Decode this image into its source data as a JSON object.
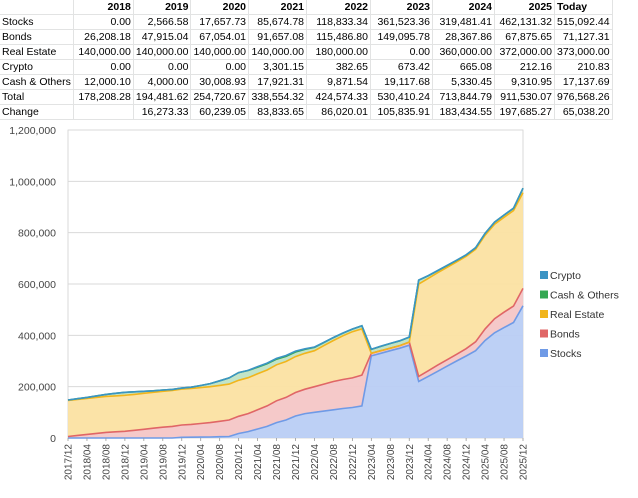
{
  "table": {
    "columns": [
      "",
      "2018",
      "2019",
      "2020",
      "2021",
      "2022",
      "2023",
      "2024",
      "2025",
      "Today"
    ],
    "rows": [
      {
        "label": "Stocks",
        "cells": [
          "0.00",
          "2,566.58",
          "17,657.73",
          "85,674.78",
          "118,833.34",
          "361,523.36",
          "319,481.41",
          "462,131.32",
          "515,092.44"
        ]
      },
      {
        "label": "Bonds",
        "cells": [
          "26,208.18",
          "47,915.04",
          "67,054.01",
          "91,657.08",
          "115,486.80",
          "149,095.78",
          "28,367.86",
          "67,875.65",
          "71,127.31"
        ]
      },
      {
        "label": "Real Estate",
        "cells": [
          "140,000.00",
          "140,000.00",
          "140,000.00",
          "140,000.00",
          "180,000.00",
          "0.00",
          "360,000.00",
          "372,000.00",
          "373,000.00"
        ]
      },
      {
        "label": "Crypto",
        "cells": [
          "0.00",
          "0.00",
          "0.00",
          "3,301.15",
          "382.65",
          "673.42",
          "665.08",
          "212.16",
          "210.83"
        ]
      },
      {
        "label": "Cash & Others",
        "cells": [
          "12,000.10",
          "4,000.00",
          "30,008.93",
          "17,921.31",
          "9,871.54",
          "19,117.68",
          "5,330.45",
          "9,310.95",
          "17,137.69"
        ]
      },
      {
        "label": "Total",
        "cells": [
          "178,208.28",
          "194,481.62",
          "254,720.67",
          "338,554.32",
          "424,574.33",
          "530,410.24",
          "713,844.79",
          "911,530.07",
          "976,568.26"
        ]
      },
      {
        "label": "Change",
        "cells": [
          "",
          "16,273.33",
          "60,239.05",
          "83,833.65",
          "86,020.01",
          "105,835.91",
          "183,434.55",
          "197,685.27",
          "65,038.20"
        ]
      }
    ]
  },
  "chart_data": {
    "type": "area",
    "stacked": true,
    "ylim": [
      0,
      1200000
    ],
    "yticks": [
      "0",
      "200,000",
      "400,000",
      "600,000",
      "800,000",
      "1,000,000",
      "1,200,000"
    ],
    "ytick_values": [
      0,
      200000,
      400000,
      600000,
      800000,
      1000000,
      1200000
    ],
    "grid": true,
    "legend_position": "right",
    "x": [
      "2017/12",
      "2018/02",
      "2018/04",
      "2018/06",
      "2018/08",
      "2018/10",
      "2018/12",
      "2019/02",
      "2019/04",
      "2019/06",
      "2019/08",
      "2019/10",
      "2019/12",
      "2020/02",
      "2020/04",
      "2020/06",
      "2020/08",
      "2020/10",
      "2020/12",
      "2021/02",
      "2021/04",
      "2021/06",
      "2021/08",
      "2021/10",
      "2021/12",
      "2022/02",
      "2022/04",
      "2022/06",
      "2022/08",
      "2022/10",
      "2022/12",
      "2023/02",
      "2023/04",
      "2023/06",
      "2023/08",
      "2023/10",
      "2023/12",
      "2024/02",
      "2024/04",
      "2024/06",
      "2024/08",
      "2024/10",
      "2024/12",
      "2025/02",
      "2025/04",
      "2025/06",
      "2025/08",
      "2025/10",
      "2025/12"
    ],
    "xtick_labels": [
      "2017/12",
      "2018/04",
      "2018/08",
      "2018/12",
      "2019/04",
      "2019/08",
      "2019/12",
      "2020/04",
      "2020/08",
      "2020/12",
      "2021/04",
      "2021/08",
      "2021/12",
      "2022/04",
      "2022/08",
      "2022/12",
      "2023/04",
      "2023/08",
      "2023/12",
      "2024/04",
      "2024/08",
      "2024/12",
      "2025/04",
      "2025/08",
      "2025/12"
    ],
    "series": [
      {
        "name": "Stocks",
        "color": "#b9cdf4",
        "stroke": "#6f9ae6",
        "values": [
          0,
          0,
          0,
          0,
          0,
          0,
          0,
          0,
          0,
          0,
          0,
          0,
          2567,
          3000,
          3500,
          4000,
          5000,
          6000,
          17658,
          25000,
          35000,
          45000,
          60000,
          70000,
          85675,
          95000,
          100000,
          105000,
          110000,
          115000,
          118833,
          125000,
          320000,
          330000,
          340000,
          350000,
          361523,
          220000,
          240000,
          260000,
          280000,
          300000,
          319481,
          340000,
          380000,
          410000,
          430000,
          450000,
          515092
        ]
      },
      {
        "name": "Bonds",
        "color": "#f4c6c6",
        "stroke": "#e06666",
        "values": [
          6000,
          10000,
          14000,
          18000,
          22000,
          24000,
          26208,
          30000,
          34000,
          38000,
          42000,
          45000,
          47915,
          50000,
          53000,
          56000,
          60000,
          64000,
          67054,
          70000,
          75000,
          80000,
          85000,
          88000,
          91657,
          95000,
          100000,
          105000,
          110000,
          113000,
          115487,
          120000,
          10000,
          10000,
          10000,
          10000,
          12000,
          20000,
          22000,
          24000,
          25000,
          26000,
          28368,
          35000,
          45000,
          55000,
          60000,
          64000,
          67876
        ]
      },
      {
        "name": "Real Estate",
        "color": "#fbe2a2",
        "stroke": "#f1b51c",
        "values": [
          140000,
          140000,
          140000,
          140000,
          140000,
          140000,
          140000,
          140000,
          140000,
          140000,
          140000,
          140000,
          140000,
          140000,
          140000,
          140000,
          140000,
          140000,
          140000,
          140000,
          140000,
          140000,
          140000,
          140000,
          140000,
          140000,
          140000,
          150000,
          160000,
          170000,
          180000,
          180000,
          0,
          0,
          0,
          0,
          0,
          360000,
          360000,
          360000,
          360000,
          360000,
          360000,
          360000,
          365000,
          368000,
          370000,
          372000,
          373000
        ]
      },
      {
        "name": "Cash & Others",
        "color": "#bfe3c5",
        "stroke": "#34a853",
        "values": [
          2000,
          3000,
          4000,
          6000,
          8000,
          10000,
          12000,
          10000,
          8000,
          6000,
          5000,
          4500,
          4000,
          5000,
          8000,
          12000,
          18000,
          24000,
          30009,
          28000,
          26000,
          24000,
          22000,
          20000,
          17921,
          15000,
          13000,
          12000,
          11000,
          10500,
          9872,
          12000,
          15000,
          17000,
          18000,
          18500,
          19118,
          15000,
          10000,
          8000,
          7000,
          6000,
          5330,
          6000,
          7000,
          8000,
          8500,
          9000,
          17138
        ]
      },
      {
        "name": "Crypto",
        "color": "#a8d4e8",
        "stroke": "#3b94c4",
        "values": [
          0,
          0,
          0,
          0,
          0,
          0,
          0,
          0,
          0,
          0,
          0,
          0,
          0,
          0,
          0,
          0,
          0,
          0,
          0,
          500,
          2000,
          3000,
          3300,
          3300,
          3301,
          2500,
          1500,
          800,
          500,
          400,
          383,
          450,
          500,
          600,
          650,
          660,
          673,
          670,
          668,
          666,
          665,
          665,
          665,
          500,
          400,
          300,
          250,
          220,
          211
        ]
      }
    ],
    "legend": [
      "Crypto",
      "Cash & Others",
      "Real Estate",
      "Bonds",
      "Stocks"
    ]
  }
}
